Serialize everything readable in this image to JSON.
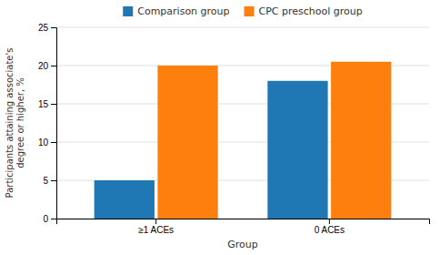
{
  "chart_data": {
    "type": "bar",
    "categories": [
      "≥1 ACEs",
      "0 ACEs"
    ],
    "series": [
      {
        "name": "Comparison group",
        "values": [
          5.0,
          18.0
        ]
      },
      {
        "name": "CPC preschool group",
        "values": [
          20.0,
          20.5
        ]
      }
    ],
    "xlabel": "Group",
    "ylabel": "Participants attaining associate's\ndegree or higher, %",
    "ylim": [
      0,
      25
    ],
    "yticks": [
      0,
      5,
      10,
      15,
      20,
      25
    ],
    "grid": true,
    "legend": "top"
  }
}
